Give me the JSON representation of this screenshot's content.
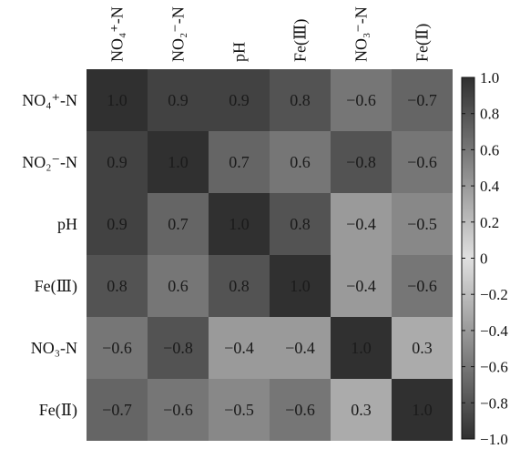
{
  "chart_data": {
    "type": "heatmap",
    "title": "",
    "xlabel": "",
    "ylabel": "",
    "row_labels": [
      "NO₄⁺-N",
      "NO₂⁻-N",
      "pH",
      "Fe(Ⅲ)",
      "NO₃-N",
      "Fe(Ⅱ)"
    ],
    "col_labels": [
      "NO₄⁺-N",
      "NO₂⁻-N",
      "pH",
      "Fe(Ⅲ)",
      "NO₃⁻-N",
      "Fe(Ⅱ)"
    ],
    "values": [
      [
        1.0,
        0.9,
        0.9,
        0.8,
        -0.6,
        -0.7
      ],
      [
        0.9,
        1.0,
        0.7,
        0.6,
        -0.8,
        -0.6
      ],
      [
        0.9,
        0.7,
        1.0,
        0.8,
        -0.4,
        -0.5
      ],
      [
        0.8,
        0.6,
        0.8,
        1.0,
        -0.4,
        -0.6
      ],
      [
        -0.6,
        -0.8,
        -0.4,
        -0.4,
        1.0,
        0.3
      ],
      [
        -0.7,
        -0.6,
        -0.5,
        -0.6,
        0.3,
        1.0
      ]
    ],
    "value_labels": [
      [
        "1.0",
        "0.9",
        "0.9",
        "0.8",
        "−0.6",
        "−0.7"
      ],
      [
        "0.9",
        "1.0",
        "0.7",
        "0.6",
        "−0.8",
        "−0.6"
      ],
      [
        "0.9",
        "0.7",
        "1.0",
        "0.8",
        "−0.4",
        "−0.5"
      ],
      [
        "0.8",
        "0.6",
        "0.8",
        "1.0",
        "−0.4",
        "−0.6"
      ],
      [
        "−0.6",
        "−0.8",
        "−0.4",
        "−0.4",
        "1.0",
        "0.3"
      ],
      [
        "−0.7",
        "−0.6",
        "−0.5",
        "−0.6",
        "0.3",
        "1.0"
      ]
    ],
    "colorbar": {
      "range": [
        -1.0,
        1.0
      ],
      "ticks": [
        1.0,
        0.8,
        0.6,
        0.4,
        0.2,
        0,
        -0.2,
        -0.4,
        -0.6,
        -0.8,
        -1.0
      ],
      "tick_labels": [
        "1.0",
        "0.8",
        "0.6",
        "0.4",
        "0.2",
        "0",
        "−0.2",
        "−0.4",
        "−0.6",
        "−0.8",
        "−1.0"
      ]
    },
    "colors": {
      "strong_magnitude": "#2e2e2e",
      "weak_magnitude": "#dcdcdc",
      "text": "#111111"
    },
    "grid": false,
    "legend": "right"
  }
}
